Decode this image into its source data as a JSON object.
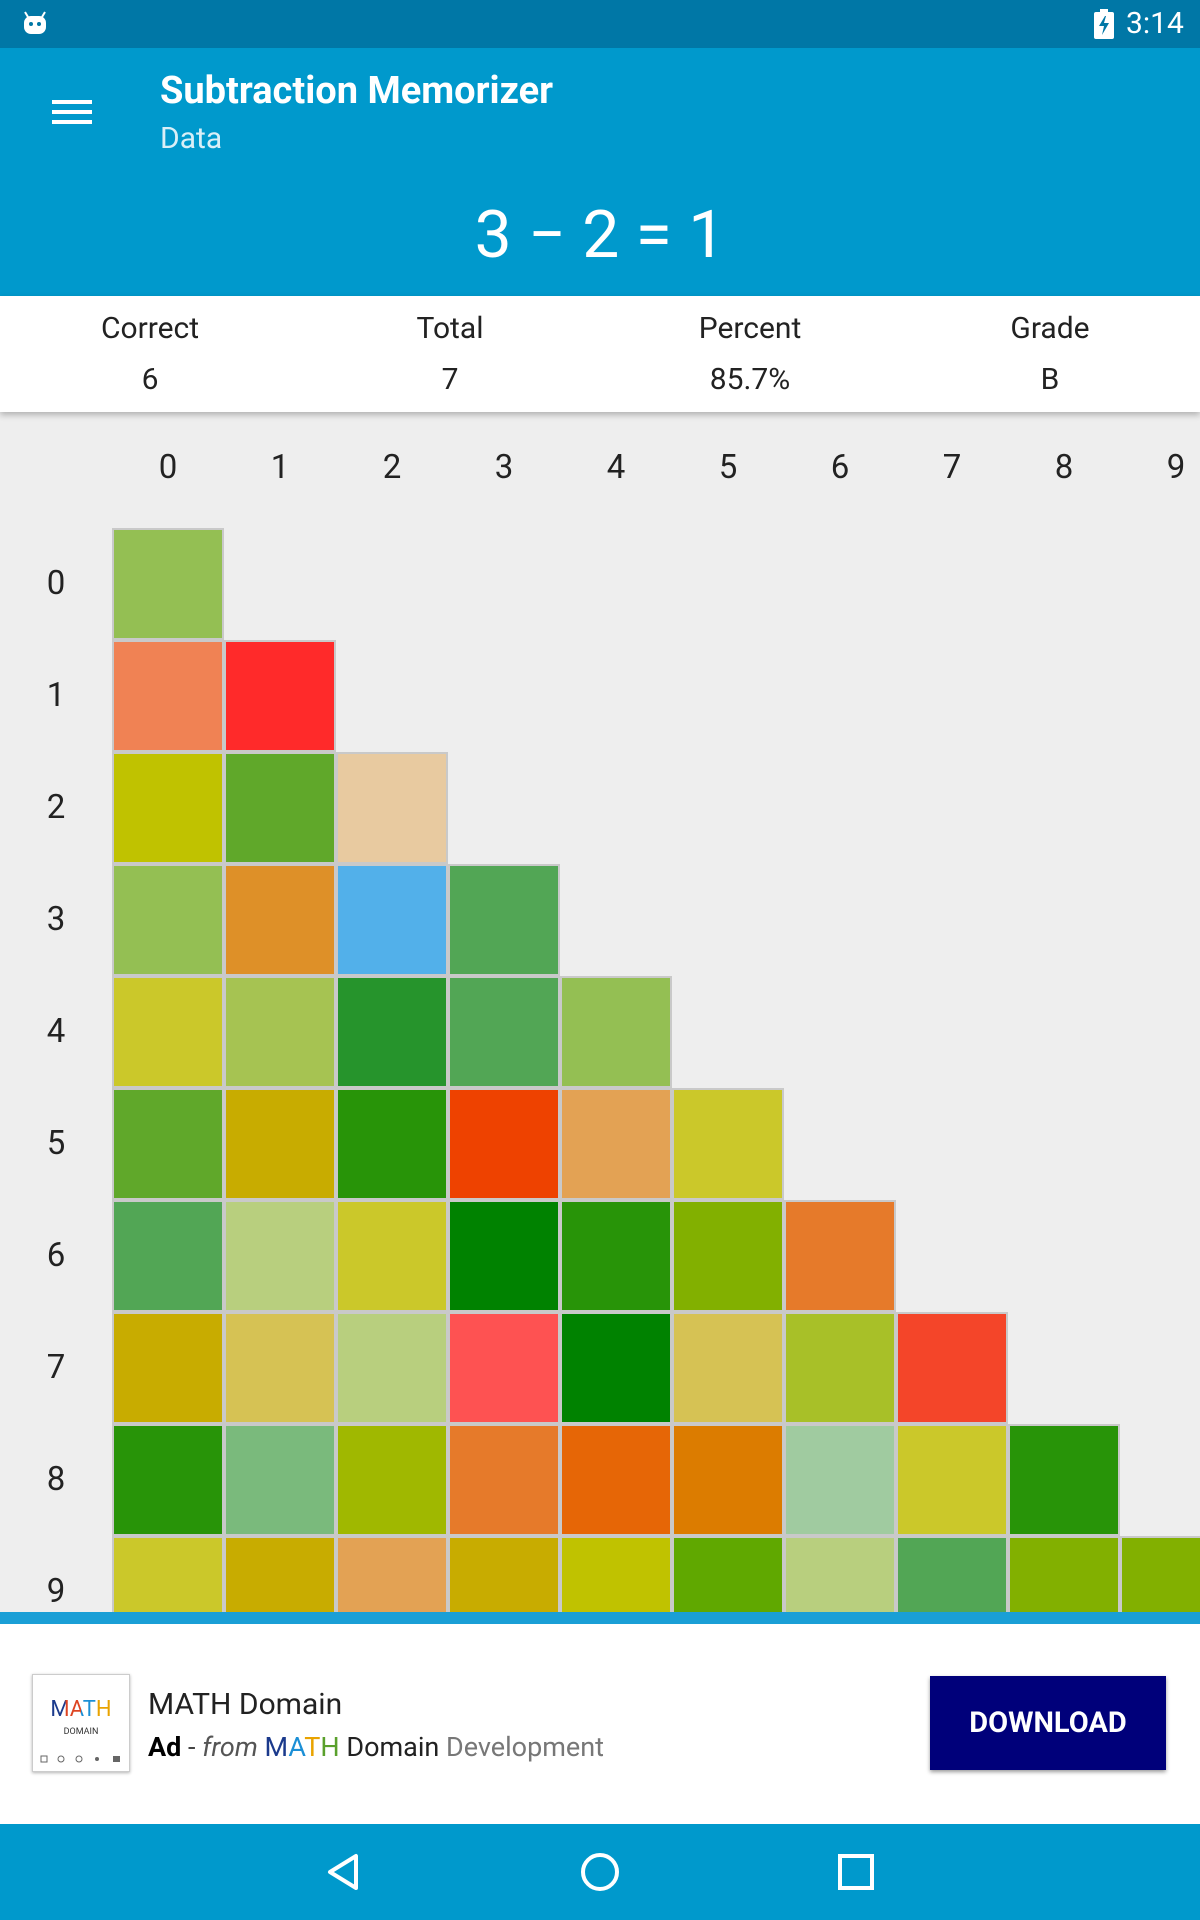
{
  "status_bar": {
    "time": "3:14"
  },
  "app_bar": {
    "title": "Subtraction Memorizer",
    "subtitle": "Data"
  },
  "equation": "3 − 2 = 1",
  "stats": [
    {
      "label": "Correct",
      "value": "6"
    },
    {
      "label": "Total",
      "value": "7"
    },
    {
      "label": "Percent",
      "value": "85.7%"
    },
    {
      "label": "Grade",
      "value": "B"
    }
  ],
  "grid": {
    "column_headers": [
      "0",
      "1",
      "2",
      "3",
      "4",
      "5",
      "6",
      "7",
      "8",
      "9"
    ],
    "row_headers": [
      "0",
      "1",
      "2",
      "3",
      "4",
      "5",
      "6",
      "7",
      "8",
      "9"
    ],
    "cell_colors": [
      [
        "#94bf53"
      ],
      [
        "#f08254",
        "#ff2a2a"
      ],
      [
        "#c0c200",
        "#60a82a",
        "#e8caa0"
      ],
      [
        "#94bf53",
        "#de9028",
        "#52b0ea",
        "#52a655"
      ],
      [
        "#cbc82a",
        "#a6c352",
        "#26942c",
        "#52a655",
        "#94bf53"
      ],
      [
        "#60a82a",
        "#c8ac00",
        "#289408",
        "#ee4200",
        "#e3a254",
        "#cbc82a"
      ],
      [
        "#52a655",
        "#b8cf7e",
        "#cbc82a",
        "#008200",
        "#289408",
        "#82b000",
        "#e67a2a"
      ],
      [
        "#c8ac00",
        "#d6c254",
        "#b8cf7e",
        "#fe5252",
        "#008200",
        "#d6c254",
        "#a8c028",
        "#f44529"
      ],
      [
        "#289408",
        "#7aba7c",
        "#a0b800",
        "#e67a2a",
        "#e66606",
        "#dc7c00",
        "#a0cba0",
        "#cbc82a",
        "#289408"
      ],
      [
        "#cbc82a",
        "#c8ac00",
        "#e3a254",
        "#c8ac00",
        "#c0c200",
        "#60a800",
        "#b8cf7e",
        "#52a655",
        "#82b000",
        "#82b000"
      ]
    ]
  },
  "ad": {
    "logo_text": "MATH",
    "logo_subtext": "DOMAIN",
    "name": "MATH Domain",
    "tag": "Ad",
    "separator": " - ",
    "from": "from",
    "brand_math": "MATH",
    "brand_domain": "Domain",
    "brand_dev": "Development",
    "button_label": "DOWNLOAD"
  }
}
